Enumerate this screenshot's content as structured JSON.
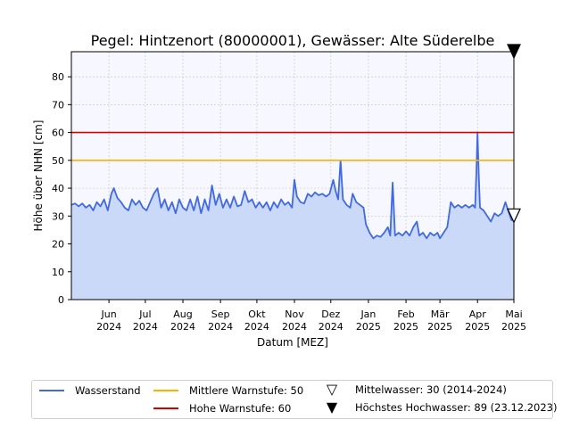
{
  "chart_data": {
    "type": "line",
    "title": "Pegel:  Hintzenort (80000001), Gewässer:  Alte Süderelbe",
    "xlabel": "Datum [MEZ]",
    "ylabel": "Höhe über NHN [cm]",
    "ylim": [
      0,
      89
    ],
    "xlim": [
      "2024-05-01",
      "2025-05-01"
    ],
    "yticks": [
      0,
      10,
      20,
      30,
      40,
      50,
      60,
      70,
      80
    ],
    "xticks": [
      {
        "date": "2024-06-01",
        "month": "Jun",
        "year": "2024"
      },
      {
        "date": "2024-07-01",
        "month": "Jul",
        "year": "2024"
      },
      {
        "date": "2024-08-01",
        "month": "Aug",
        "year": "2024"
      },
      {
        "date": "2024-09-01",
        "month": "Sep",
        "year": "2024"
      },
      {
        "date": "2024-10-01",
        "month": "Okt",
        "year": "2024"
      },
      {
        "date": "2024-11-01",
        "month": "Nov",
        "year": "2024"
      },
      {
        "date": "2024-12-01",
        "month": "Dez",
        "year": "2024"
      },
      {
        "date": "2025-01-01",
        "month": "Jan",
        "year": "2025"
      },
      {
        "date": "2025-02-01",
        "month": "Feb",
        "year": "2025"
      },
      {
        "date": "2025-03-01",
        "month": "Mär",
        "year": "2025"
      },
      {
        "date": "2025-04-01",
        "month": "Apr",
        "year": "2025"
      },
      {
        "date": "2025-05-01",
        "month": "Mai",
        "year": "2025"
      }
    ],
    "grid": true,
    "legend_position": "bottom",
    "series": [
      {
        "name": "Wasserstand",
        "color": "#4169e1",
        "fill": "#c9d9f7",
        "points": [
          [
            "2024-05-01",
            34
          ],
          [
            "2024-05-04",
            34.5
          ],
          [
            "2024-05-07",
            33.5
          ],
          [
            "2024-05-10",
            34.5
          ],
          [
            "2024-05-13",
            33
          ],
          [
            "2024-05-16",
            34
          ],
          [
            "2024-05-19",
            32
          ],
          [
            "2024-05-22",
            35
          ],
          [
            "2024-05-25",
            33.5
          ],
          [
            "2024-05-28",
            36
          ],
          [
            "2024-05-31",
            32
          ],
          [
            "2024-06-03",
            38
          ],
          [
            "2024-06-05",
            40
          ],
          [
            "2024-06-08",
            36.5
          ],
          [
            "2024-06-11",
            35
          ],
          [
            "2024-06-14",
            33
          ],
          [
            "2024-06-17",
            32
          ],
          [
            "2024-06-20",
            36
          ],
          [
            "2024-06-23",
            34
          ],
          [
            "2024-06-26",
            35.5
          ],
          [
            "2024-06-29",
            33
          ],
          [
            "2024-07-02",
            32
          ],
          [
            "2024-07-05",
            35
          ],
          [
            "2024-07-08",
            38
          ],
          [
            "2024-07-11",
            40
          ],
          [
            "2024-07-14",
            33
          ],
          [
            "2024-07-17",
            36
          ],
          [
            "2024-07-20",
            32
          ],
          [
            "2024-07-23",
            35
          ],
          [
            "2024-07-26",
            31
          ],
          [
            "2024-07-29",
            36
          ],
          [
            "2024-08-01",
            33
          ],
          [
            "2024-08-04",
            32
          ],
          [
            "2024-08-07",
            36
          ],
          [
            "2024-08-10",
            32
          ],
          [
            "2024-08-13",
            37
          ],
          [
            "2024-08-16",
            31
          ],
          [
            "2024-08-19",
            36
          ],
          [
            "2024-08-22",
            32
          ],
          [
            "2024-08-25",
            41
          ],
          [
            "2024-08-28",
            34
          ],
          [
            "2024-08-31",
            38
          ],
          [
            "2024-09-03",
            33
          ],
          [
            "2024-09-06",
            36
          ],
          [
            "2024-09-09",
            33
          ],
          [
            "2024-09-12",
            37
          ],
          [
            "2024-09-15",
            33.5
          ],
          [
            "2024-09-18",
            34
          ],
          [
            "2024-09-21",
            39
          ],
          [
            "2024-09-24",
            35
          ],
          [
            "2024-09-27",
            36
          ],
          [
            "2024-09-30",
            33
          ],
          [
            "2024-10-03",
            35
          ],
          [
            "2024-10-06",
            33
          ],
          [
            "2024-10-09",
            35
          ],
          [
            "2024-10-12",
            32
          ],
          [
            "2024-10-15",
            35
          ],
          [
            "2024-10-18",
            33
          ],
          [
            "2024-10-21",
            36
          ],
          [
            "2024-10-24",
            34
          ],
          [
            "2024-10-27",
            35
          ],
          [
            "2024-10-30",
            33
          ],
          [
            "2024-11-01",
            43
          ],
          [
            "2024-11-03",
            37
          ],
          [
            "2024-11-06",
            35
          ],
          [
            "2024-11-09",
            34.5
          ],
          [
            "2024-11-12",
            38
          ],
          [
            "2024-11-15",
            37
          ],
          [
            "2024-11-18",
            38.5
          ],
          [
            "2024-11-21",
            37.5
          ],
          [
            "2024-11-24",
            38
          ],
          [
            "2024-11-27",
            37
          ],
          [
            "2024-11-30",
            38
          ],
          [
            "2024-12-03",
            43
          ],
          [
            "2024-12-05",
            39
          ],
          [
            "2024-12-07",
            36
          ],
          [
            "2024-12-09",
            50
          ],
          [
            "2024-12-11",
            36
          ],
          [
            "2024-12-14",
            34
          ],
          [
            "2024-12-17",
            33
          ],
          [
            "2024-12-19",
            38
          ],
          [
            "2024-12-22",
            35
          ],
          [
            "2024-12-25",
            34
          ],
          [
            "2024-12-28",
            33
          ],
          [
            "2024-12-30",
            27
          ],
          [
            "2025-01-02",
            24
          ],
          [
            "2025-01-05",
            22
          ],
          [
            "2025-01-08",
            23
          ],
          [
            "2025-01-11",
            22.5
          ],
          [
            "2025-01-14",
            24
          ],
          [
            "2025-01-17",
            26
          ],
          [
            "2025-01-19",
            23
          ],
          [
            "2025-01-21",
            42
          ],
          [
            "2025-01-23",
            23
          ],
          [
            "2025-01-26",
            24
          ],
          [
            "2025-01-29",
            23
          ],
          [
            "2025-02-01",
            24.5
          ],
          [
            "2025-02-04",
            23
          ],
          [
            "2025-02-07",
            26
          ],
          [
            "2025-02-10",
            28
          ],
          [
            "2025-02-12",
            23
          ],
          [
            "2025-02-15",
            24
          ],
          [
            "2025-02-18",
            22
          ],
          [
            "2025-02-21",
            24
          ],
          [
            "2025-02-24",
            23
          ],
          [
            "2025-02-27",
            24
          ],
          [
            "2025-03-01",
            22
          ],
          [
            "2025-03-04",
            24
          ],
          [
            "2025-03-07",
            26
          ],
          [
            "2025-03-10",
            35
          ],
          [
            "2025-03-13",
            33
          ],
          [
            "2025-03-16",
            34
          ],
          [
            "2025-03-19",
            33
          ],
          [
            "2025-03-22",
            34
          ],
          [
            "2025-03-25",
            33
          ],
          [
            "2025-03-28",
            34
          ],
          [
            "2025-03-30",
            33
          ],
          [
            "2025-03-31",
            45
          ],
          [
            "2025-04-01",
            60
          ],
          [
            "2025-04-02",
            45
          ],
          [
            "2025-04-03",
            33
          ],
          [
            "2025-04-06",
            32
          ],
          [
            "2025-04-09",
            30
          ],
          [
            "2025-04-12",
            28
          ],
          [
            "2025-04-15",
            31
          ],
          [
            "2025-04-18",
            30
          ],
          [
            "2025-04-21",
            31
          ],
          [
            "2025-04-24",
            35
          ],
          [
            "2025-04-27",
            31
          ],
          [
            "2025-04-29",
            28.5
          ],
          [
            "2025-05-01",
            30
          ]
        ]
      }
    ],
    "thresholds": [
      {
        "name": "Mittlere Warnstufe: 50",
        "value": 50,
        "color": "#ffb000"
      },
      {
        "name": "Hohe Warnstufe: 60",
        "value": 60,
        "color": "#d40000"
      }
    ],
    "markers": [
      {
        "name": "Mittelwasser: 30 (2014-2024)",
        "value": 30,
        "date": "2025-05-01",
        "style": "open-triangle-down"
      },
      {
        "name": "Höchstes Hochwasser: 89 (23.12.2023)",
        "value": 89,
        "date": "2025-05-01",
        "style": "filled-triangle-down"
      }
    ]
  }
}
